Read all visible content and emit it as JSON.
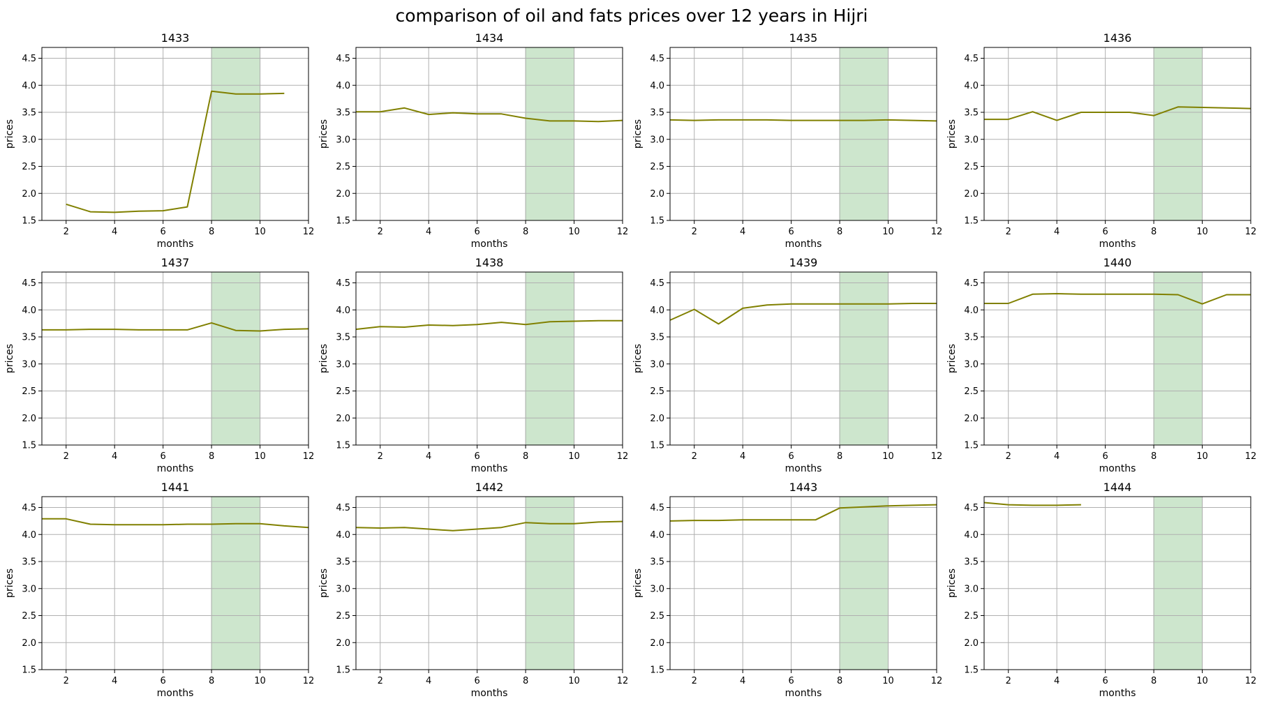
{
  "figure": {
    "title": "comparison of oil and fats prices over 12 years in Hijri",
    "line_color": "#808000",
    "highlight_color": "#cde6cd",
    "highlight_edge_color": "#9dbf9d",
    "grid_color": "#b0b0b0"
  },
  "chart_data": [
    {
      "type": "line",
      "title": "1433",
      "xlabel": "months",
      "ylabel": "prices",
      "xlim": [
        1,
        12
      ],
      "ylim": [
        1.5,
        4.7
      ],
      "xticks": [
        2,
        4,
        6,
        8,
        10,
        12
      ],
      "yticks": [
        1.5,
        2.0,
        2.5,
        3.0,
        3.5,
        4.0,
        4.5
      ],
      "highlight": [
        8,
        10
      ],
      "grid": true,
      "x": [
        2,
        3,
        4,
        5,
        6,
        7,
        8,
        9,
        10,
        11
      ],
      "y": [
        1.8,
        1.66,
        1.65,
        1.67,
        1.68,
        1.75,
        3.89,
        3.84,
        3.84,
        3.85
      ]
    },
    {
      "type": "line",
      "title": "1434",
      "xlabel": "months",
      "ylabel": "prices",
      "xlim": [
        1,
        12
      ],
      "ylim": [
        1.5,
        4.7
      ],
      "xticks": [
        2,
        4,
        6,
        8,
        10,
        12
      ],
      "yticks": [
        1.5,
        2.0,
        2.5,
        3.0,
        3.5,
        4.0,
        4.5
      ],
      "highlight": [
        8,
        10
      ],
      "grid": true,
      "x": [
        1,
        2,
        3,
        4,
        5,
        6,
        7,
        8,
        9,
        10,
        11,
        12
      ],
      "y": [
        3.51,
        3.51,
        3.58,
        3.46,
        3.49,
        3.47,
        3.47,
        3.39,
        3.34,
        3.34,
        3.33,
        3.35
      ]
    },
    {
      "type": "line",
      "title": "1435",
      "xlabel": "months",
      "ylabel": "prices",
      "xlim": [
        1,
        12
      ],
      "ylim": [
        1.5,
        4.7
      ],
      "xticks": [
        2,
        4,
        6,
        8,
        10,
        12
      ],
      "yticks": [
        1.5,
        2.0,
        2.5,
        3.0,
        3.5,
        4.0,
        4.5
      ],
      "highlight": [
        8,
        10
      ],
      "grid": true,
      "x": [
        1,
        2,
        3,
        4,
        5,
        6,
        7,
        8,
        9,
        10,
        11,
        12
      ],
      "y": [
        3.36,
        3.35,
        3.36,
        3.36,
        3.36,
        3.35,
        3.35,
        3.35,
        3.35,
        3.36,
        3.35,
        3.34
      ]
    },
    {
      "type": "line",
      "title": "1436",
      "xlabel": "months",
      "ylabel": "prices",
      "xlim": [
        1,
        12
      ],
      "ylim": [
        1.5,
        4.7
      ],
      "xticks": [
        2,
        4,
        6,
        8,
        10,
        12
      ],
      "yticks": [
        1.5,
        2.0,
        2.5,
        3.0,
        3.5,
        4.0,
        4.5
      ],
      "highlight": [
        8,
        10
      ],
      "grid": true,
      "x": [
        1,
        2,
        3,
        4,
        5,
        6,
        7,
        8,
        9,
        10,
        11,
        12
      ],
      "y": [
        3.37,
        3.37,
        3.51,
        3.35,
        3.5,
        3.5,
        3.5,
        3.44,
        3.6,
        3.59,
        3.58,
        3.57
      ]
    },
    {
      "type": "line",
      "title": "1437",
      "xlabel": "months",
      "ylabel": "prices",
      "xlim": [
        1,
        12
      ],
      "ylim": [
        1.5,
        4.7
      ],
      "xticks": [
        2,
        4,
        6,
        8,
        10,
        12
      ],
      "yticks": [
        1.5,
        2.0,
        2.5,
        3.0,
        3.5,
        4.0,
        4.5
      ],
      "highlight": [
        8,
        10
      ],
      "grid": true,
      "x": [
        1,
        2,
        3,
        4,
        5,
        6,
        7,
        8,
        9,
        10,
        11,
        12
      ],
      "y": [
        3.63,
        3.63,
        3.64,
        3.64,
        3.63,
        3.63,
        3.63,
        3.76,
        3.62,
        3.61,
        3.64,
        3.65
      ]
    },
    {
      "type": "line",
      "title": "1438",
      "xlabel": "months",
      "ylabel": "prices",
      "xlim": [
        1,
        12
      ],
      "ylim": [
        1.5,
        4.7
      ],
      "xticks": [
        2,
        4,
        6,
        8,
        10,
        12
      ],
      "yticks": [
        1.5,
        2.0,
        2.5,
        3.0,
        3.5,
        4.0,
        4.5
      ],
      "highlight": [
        8,
        10
      ],
      "grid": true,
      "x": [
        1,
        2,
        3,
        4,
        5,
        6,
        7,
        8,
        9,
        10,
        11,
        12
      ],
      "y": [
        3.64,
        3.69,
        3.68,
        3.72,
        3.71,
        3.73,
        3.77,
        3.73,
        3.78,
        3.79,
        3.8,
        3.8
      ]
    },
    {
      "type": "line",
      "title": "1439",
      "xlabel": "months",
      "ylabel": "prices",
      "xlim": [
        1,
        12
      ],
      "ylim": [
        1.5,
        4.7
      ],
      "xticks": [
        2,
        4,
        6,
        8,
        10,
        12
      ],
      "yticks": [
        1.5,
        2.0,
        2.5,
        3.0,
        3.5,
        4.0,
        4.5
      ],
      "highlight": [
        8,
        10
      ],
      "grid": true,
      "x": [
        1,
        2,
        3,
        4,
        5,
        6,
        7,
        8,
        9,
        10,
        11,
        12
      ],
      "y": [
        3.81,
        4.01,
        3.74,
        4.03,
        4.09,
        4.11,
        4.11,
        4.11,
        4.11,
        4.11,
        4.12,
        4.12
      ]
    },
    {
      "type": "line",
      "title": "1440",
      "xlabel": "months",
      "ylabel": "prices",
      "xlim": [
        1,
        12
      ],
      "ylim": [
        1.5,
        4.7
      ],
      "xticks": [
        2,
        4,
        6,
        8,
        10,
        12
      ],
      "yticks": [
        1.5,
        2.0,
        2.5,
        3.0,
        3.5,
        4.0,
        4.5
      ],
      "highlight": [
        8,
        10
      ],
      "grid": true,
      "x": [
        1,
        2,
        3,
        4,
        5,
        6,
        7,
        8,
        9,
        10,
        11,
        12
      ],
      "y": [
        4.12,
        4.12,
        4.29,
        4.3,
        4.29,
        4.29,
        4.29,
        4.29,
        4.28,
        4.11,
        4.28,
        4.28
      ]
    },
    {
      "type": "line",
      "title": "1441",
      "xlabel": "months",
      "ylabel": "prices",
      "xlim": [
        1,
        12
      ],
      "ylim": [
        1.5,
        4.7
      ],
      "xticks": [
        2,
        4,
        6,
        8,
        10,
        12
      ],
      "yticks": [
        1.5,
        2.0,
        2.5,
        3.0,
        3.5,
        4.0,
        4.5
      ],
      "highlight": [
        8,
        10
      ],
      "grid": true,
      "x": [
        1,
        2,
        3,
        4,
        5,
        6,
        7,
        8,
        9,
        10,
        11,
        12
      ],
      "y": [
        4.29,
        4.29,
        4.19,
        4.18,
        4.18,
        4.18,
        4.19,
        4.19,
        4.2,
        4.2,
        4.16,
        4.13
      ]
    },
    {
      "type": "line",
      "title": "1442",
      "xlabel": "months",
      "ylabel": "prices",
      "xlim": [
        1,
        12
      ],
      "ylim": [
        1.5,
        4.7
      ],
      "xticks": [
        2,
        4,
        6,
        8,
        10,
        12
      ],
      "yticks": [
        1.5,
        2.0,
        2.5,
        3.0,
        3.5,
        4.0,
        4.5
      ],
      "highlight": [
        8,
        10
      ],
      "grid": true,
      "x": [
        1,
        2,
        3,
        4,
        5,
        6,
        7,
        8,
        9,
        10,
        11,
        12
      ],
      "y": [
        4.13,
        4.12,
        4.13,
        4.1,
        4.07,
        4.1,
        4.13,
        4.22,
        4.2,
        4.2,
        4.23,
        4.24
      ]
    },
    {
      "type": "line",
      "title": "1443",
      "xlabel": "months",
      "ylabel": "prices",
      "xlim": [
        1,
        12
      ],
      "ylim": [
        1.5,
        4.7
      ],
      "xticks": [
        2,
        4,
        6,
        8,
        10,
        12
      ],
      "yticks": [
        1.5,
        2.0,
        2.5,
        3.0,
        3.5,
        4.0,
        4.5
      ],
      "highlight": [
        8,
        10
      ],
      "grid": true,
      "x": [
        1,
        2,
        3,
        4,
        5,
        6,
        7,
        8,
        9,
        10,
        11,
        12
      ],
      "y": [
        4.25,
        4.26,
        4.26,
        4.27,
        4.27,
        4.27,
        4.27,
        4.49,
        4.51,
        4.53,
        4.54,
        4.55
      ]
    },
    {
      "type": "line",
      "title": "1444",
      "xlabel": "months",
      "ylabel": "prices",
      "xlim": [
        1,
        12
      ],
      "ylim": [
        1.5,
        4.7
      ],
      "xticks": [
        2,
        4,
        6,
        8,
        10,
        12
      ],
      "yticks": [
        1.5,
        2.0,
        2.5,
        3.0,
        3.5,
        4.0,
        4.5
      ],
      "highlight": [
        8,
        10
      ],
      "grid": true,
      "x": [
        1,
        2,
        3,
        4,
        5
      ],
      "y": [
        4.59,
        4.55,
        4.54,
        4.54,
        4.55
      ]
    }
  ]
}
